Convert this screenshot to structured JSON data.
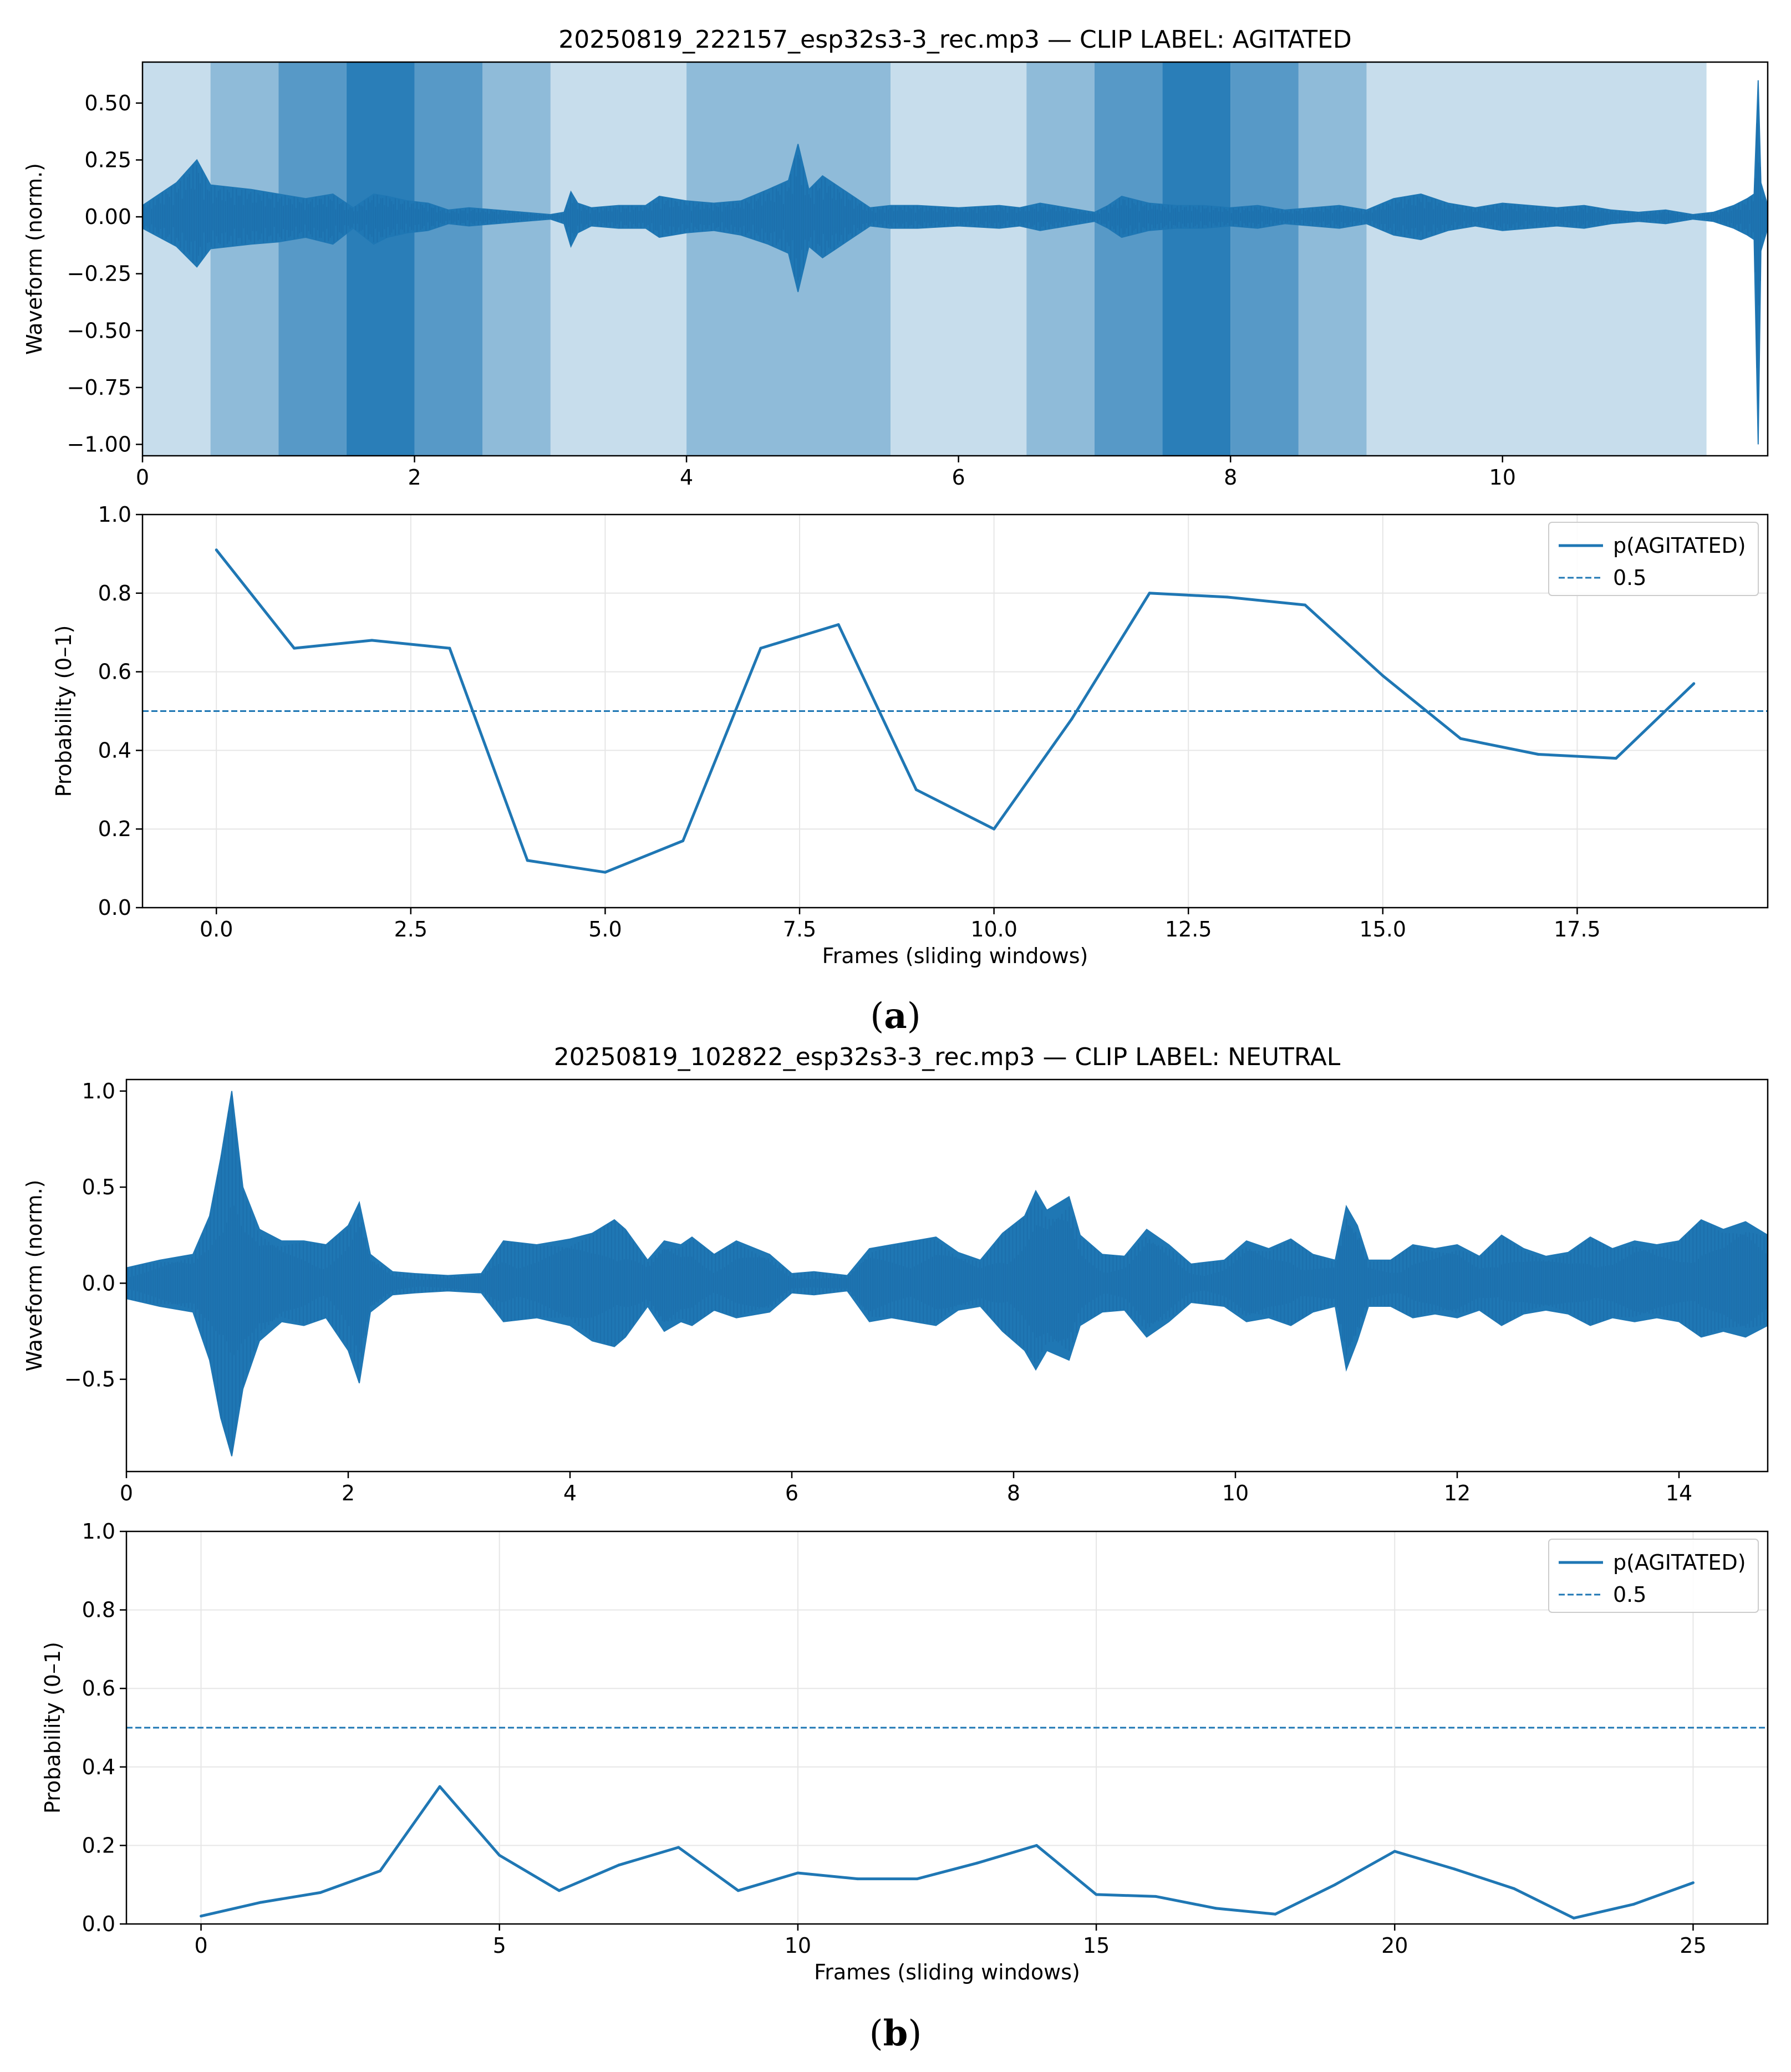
{
  "figure": {
    "caption_a": "a",
    "caption_b": "b"
  },
  "chart_data": [
    {
      "type": "area",
      "panel": "a-top",
      "title": "20250819_222157_esp32s3-3_rec.mp3 — CLIP LABEL: AGITATED",
      "xlabel": "",
      "ylabel": "Waveform (norm.)",
      "xlim": [
        0,
        11.95
      ],
      "ylim": [
        -1.05,
        0.68
      ],
      "xticks": [
        0,
        2,
        4,
        6,
        8,
        10
      ],
      "xtick_labels": [
        "0",
        "2",
        "4",
        "6",
        "8",
        "10"
      ],
      "yticks": [
        0.5,
        0.25,
        0.0,
        -0.25,
        -0.5,
        -0.75,
        -1.0
      ],
      "ytick_labels": [
        "0.50",
        "0.25",
        "0.00",
        "−0.25",
        "−0.50",
        "−0.75",
        "−1.00"
      ],
      "grid": false,
      "series_color": "#1f77b4",
      "band_color": "#1f77b4",
      "band_alpha_unit": 0.25,
      "shading_bands": [
        {
          "x0": 0.0,
          "x1": 0.5,
          "level": 1
        },
        {
          "x0": 0.5,
          "x1": 1.0,
          "level": 2
        },
        {
          "x0": 1.0,
          "x1": 1.5,
          "level": 3
        },
        {
          "x0": 1.5,
          "x1": 2.0,
          "level": 4
        },
        {
          "x0": 2.0,
          "x1": 2.5,
          "level": 3
        },
        {
          "x0": 2.5,
          "x1": 3.0,
          "level": 2
        },
        {
          "x0": 3.0,
          "x1": 4.0,
          "level": 1
        },
        {
          "x0": 4.0,
          "x1": 5.5,
          "level": 2
        },
        {
          "x0": 5.5,
          "x1": 6.5,
          "level": 1
        },
        {
          "x0": 6.5,
          "x1": 7.0,
          "level": 2
        },
        {
          "x0": 7.0,
          "x1": 7.5,
          "level": 3
        },
        {
          "x0": 7.5,
          "x1": 8.0,
          "level": 4
        },
        {
          "x0": 8.0,
          "x1": 8.5,
          "level": 3
        },
        {
          "x0": 8.5,
          "x1": 9.0,
          "level": 2
        },
        {
          "x0": 9.0,
          "x1": 11.5,
          "level": 1
        }
      ],
      "envelope": {
        "x": [
          0.0,
          0.25,
          0.4,
          0.5,
          0.8,
          1.0,
          1.2,
          1.4,
          1.55,
          1.7,
          1.8,
          1.95,
          2.1,
          2.25,
          2.4,
          2.6,
          2.8,
          3.0,
          3.1,
          3.15,
          3.2,
          3.3,
          3.5,
          3.7,
          3.8,
          3.9,
          4.0,
          4.2,
          4.4,
          4.6,
          4.75,
          4.82,
          4.9,
          5.0,
          5.1,
          5.2,
          5.35,
          5.5,
          5.7,
          6.0,
          6.3,
          6.45,
          6.6,
          6.8,
          7.0,
          7.1,
          7.2,
          7.4,
          7.6,
          7.8,
          8.0,
          8.2,
          8.4,
          8.6,
          8.8,
          9.0,
          9.2,
          9.4,
          9.6,
          9.8,
          10.0,
          10.2,
          10.4,
          10.6,
          10.8,
          11.0,
          11.2,
          11.4,
          11.55,
          11.7,
          11.8,
          11.85,
          11.88,
          11.9,
          11.95
        ],
        "upper": [
          0.05,
          0.15,
          0.25,
          0.14,
          0.12,
          0.1,
          0.08,
          0.1,
          0.04,
          0.1,
          0.09,
          0.07,
          0.06,
          0.03,
          0.04,
          0.03,
          0.02,
          0.01,
          0.02,
          0.11,
          0.06,
          0.04,
          0.05,
          0.05,
          0.09,
          0.08,
          0.07,
          0.06,
          0.07,
          0.12,
          0.16,
          0.32,
          0.12,
          0.18,
          0.14,
          0.1,
          0.04,
          0.05,
          0.05,
          0.04,
          0.05,
          0.04,
          0.06,
          0.04,
          0.02,
          0.05,
          0.09,
          0.06,
          0.05,
          0.05,
          0.04,
          0.05,
          0.03,
          0.04,
          0.05,
          0.03,
          0.08,
          0.1,
          0.06,
          0.04,
          0.06,
          0.05,
          0.04,
          0.05,
          0.03,
          0.02,
          0.03,
          0.01,
          0.02,
          0.05,
          0.08,
          0.1,
          0.6,
          0.15,
          0.05
        ],
        "lower": [
          -0.05,
          -0.13,
          -0.22,
          -0.14,
          -0.12,
          -0.11,
          -0.09,
          -0.12,
          -0.05,
          -0.12,
          -0.09,
          -0.07,
          -0.06,
          -0.03,
          -0.04,
          -0.03,
          -0.02,
          -0.01,
          -0.03,
          -0.13,
          -0.07,
          -0.04,
          -0.05,
          -0.05,
          -0.09,
          -0.08,
          -0.07,
          -0.06,
          -0.08,
          -0.12,
          -0.16,
          -0.33,
          -0.13,
          -0.18,
          -0.14,
          -0.1,
          -0.04,
          -0.05,
          -0.05,
          -0.04,
          -0.05,
          -0.04,
          -0.06,
          -0.04,
          -0.02,
          -0.05,
          -0.09,
          -0.06,
          -0.05,
          -0.05,
          -0.04,
          -0.05,
          -0.03,
          -0.04,
          -0.05,
          -0.03,
          -0.08,
          -0.1,
          -0.06,
          -0.04,
          -0.06,
          -0.05,
          -0.04,
          -0.05,
          -0.03,
          -0.02,
          -0.03,
          -0.01,
          -0.02,
          -0.05,
          -0.08,
          -0.1,
          -1.0,
          -0.15,
          -0.05
        ]
      }
    },
    {
      "type": "line",
      "panel": "a-bottom",
      "xlabel": "Frames (sliding windows)",
      "ylabel": "Probability (0–1)",
      "xlim": [
        -0.95,
        19.95
      ],
      "ylim": [
        0.0,
        1.0
      ],
      "xticks": [
        0.0,
        2.5,
        5.0,
        7.5,
        10.0,
        12.5,
        15.0,
        17.5
      ],
      "xtick_labels": [
        "0.0",
        "2.5",
        "5.0",
        "7.5",
        "10.0",
        "12.5",
        "15.0",
        "17.5"
      ],
      "yticks": [
        0.0,
        0.2,
        0.4,
        0.6,
        0.8,
        1.0
      ],
      "ytick_labels": [
        "0.0",
        "0.2",
        "0.4",
        "0.6",
        "0.8",
        "1.0"
      ],
      "grid": true,
      "legend_position": "top-right",
      "series": [
        {
          "name": "p(AGITATED)",
          "color": "#1f77b4",
          "x": [
            0,
            1,
            2,
            3,
            4,
            5,
            6,
            7,
            8,
            9,
            10,
            11,
            12,
            13,
            14,
            15,
            16,
            17,
            18,
            19
          ],
          "values": [
            0.91,
            0.66,
            0.68,
            0.66,
            0.12,
            0.09,
            0.17,
            0.66,
            0.72,
            0.3,
            0.2,
            0.48,
            0.8,
            0.79,
            0.77,
            0.59,
            0.43,
            0.39,
            0.38,
            0.57
          ]
        }
      ],
      "threshold": {
        "name": "0.5",
        "value": 0.5,
        "color": "#1f77b4",
        "style": "dashed"
      }
    },
    {
      "type": "area",
      "panel": "b-top",
      "title": "20250819_102822_esp32s3-3_rec.mp3 — CLIP LABEL: NEUTRAL",
      "xlabel": "",
      "ylabel": "Waveform (norm.)",
      "xlim": [
        0,
        14.8
      ],
      "ylim": [
        -0.98,
        1.06
      ],
      "xticks": [
        0,
        2,
        4,
        6,
        8,
        10,
        12,
        14
      ],
      "xtick_labels": [
        "0",
        "2",
        "4",
        "6",
        "8",
        "10",
        "12",
        "14"
      ],
      "yticks": [
        1.0,
        0.5,
        0.0,
        -0.5
      ],
      "ytick_labels": [
        "1.0",
        "0.5",
        "0.0",
        "−0.5"
      ],
      "grid": false,
      "series_color": "#1f77b4",
      "envelope": {
        "x": [
          0.0,
          0.3,
          0.6,
          0.75,
          0.85,
          0.95,
          1.05,
          1.2,
          1.4,
          1.6,
          1.8,
          2.0,
          2.1,
          2.2,
          2.4,
          2.6,
          2.9,
          3.2,
          3.4,
          3.7,
          4.0,
          4.2,
          4.4,
          4.5,
          4.7,
          4.85,
          5.0,
          5.1,
          5.3,
          5.5,
          5.8,
          6.0,
          6.2,
          6.5,
          6.7,
          6.9,
          7.1,
          7.3,
          7.5,
          7.7,
          7.9,
          8.1,
          8.2,
          8.3,
          8.5,
          8.6,
          8.8,
          9.0,
          9.2,
          9.4,
          9.6,
          9.9,
          10.1,
          10.3,
          10.5,
          10.7,
          10.9,
          11.0,
          11.1,
          11.2,
          11.4,
          11.6,
          11.8,
          12.0,
          12.2,
          12.4,
          12.6,
          12.8,
          13.0,
          13.2,
          13.4,
          13.6,
          13.8,
          14.0,
          14.2,
          14.4,
          14.6,
          14.8
        ],
        "upper": [
          0.08,
          0.12,
          0.15,
          0.35,
          0.65,
          1.0,
          0.5,
          0.28,
          0.22,
          0.22,
          0.2,
          0.3,
          0.42,
          0.15,
          0.06,
          0.05,
          0.04,
          0.05,
          0.22,
          0.2,
          0.23,
          0.26,
          0.33,
          0.28,
          0.12,
          0.22,
          0.2,
          0.24,
          0.15,
          0.22,
          0.15,
          0.05,
          0.06,
          0.04,
          0.18,
          0.2,
          0.22,
          0.24,
          0.16,
          0.12,
          0.26,
          0.35,
          0.48,
          0.38,
          0.45,
          0.25,
          0.15,
          0.14,
          0.28,
          0.2,
          0.1,
          0.12,
          0.22,
          0.18,
          0.23,
          0.15,
          0.12,
          0.4,
          0.3,
          0.12,
          0.12,
          0.2,
          0.18,
          0.2,
          0.14,
          0.25,
          0.18,
          0.14,
          0.16,
          0.24,
          0.18,
          0.22,
          0.2,
          0.22,
          0.33,
          0.28,
          0.32,
          0.25
        ],
        "lower": [
          -0.08,
          -0.12,
          -0.15,
          -0.4,
          -0.7,
          -0.9,
          -0.55,
          -0.3,
          -0.2,
          -0.22,
          -0.18,
          -0.35,
          -0.52,
          -0.15,
          -0.06,
          -0.05,
          -0.04,
          -0.05,
          -0.2,
          -0.18,
          -0.22,
          -0.3,
          -0.33,
          -0.28,
          -0.12,
          -0.25,
          -0.2,
          -0.22,
          -0.14,
          -0.18,
          -0.15,
          -0.05,
          -0.06,
          -0.04,
          -0.2,
          -0.18,
          -0.2,
          -0.22,
          -0.14,
          -0.12,
          -0.25,
          -0.35,
          -0.45,
          -0.35,
          -0.4,
          -0.22,
          -0.15,
          -0.14,
          -0.28,
          -0.2,
          -0.1,
          -0.12,
          -0.2,
          -0.18,
          -0.22,
          -0.15,
          -0.12,
          -0.45,
          -0.3,
          -0.12,
          -0.12,
          -0.18,
          -0.16,
          -0.18,
          -0.14,
          -0.22,
          -0.16,
          -0.14,
          -0.16,
          -0.22,
          -0.18,
          -0.2,
          -0.18,
          -0.2,
          -0.28,
          -0.25,
          -0.28,
          -0.22
        ]
      }
    },
    {
      "type": "line",
      "panel": "b-bottom",
      "xlabel": "Frames (sliding windows)",
      "ylabel": "Probability (0–1)",
      "xlim": [
        -1.25,
        26.25
      ],
      "ylim": [
        0.0,
        1.0
      ],
      "xticks": [
        0,
        5,
        10,
        15,
        20,
        25
      ],
      "xtick_labels": [
        "0",
        "5",
        "10",
        "15",
        "20",
        "25"
      ],
      "yticks": [
        0.0,
        0.2,
        0.4,
        0.6,
        0.8,
        1.0
      ],
      "ytick_labels": [
        "0.0",
        "0.2",
        "0.4",
        "0.6",
        "0.8",
        "1.0"
      ],
      "grid": true,
      "legend_position": "top-right",
      "series": [
        {
          "name": "p(AGITATED)",
          "color": "#1f77b4",
          "x": [
            0,
            1,
            2,
            3,
            4,
            5,
            6,
            7,
            8,
            9,
            10,
            11,
            12,
            13,
            14,
            15,
            16,
            17,
            18,
            19,
            20,
            21,
            22,
            23,
            24,
            25
          ],
          "values": [
            0.02,
            0.055,
            0.08,
            0.135,
            0.35,
            0.175,
            0.085,
            0.15,
            0.195,
            0.085,
            0.13,
            0.115,
            0.115,
            0.155,
            0.2,
            0.075,
            0.07,
            0.04,
            0.025,
            0.1,
            0.185,
            0.14,
            0.09,
            0.015,
            0.05,
            0.105
          ]
        }
      ],
      "threshold": {
        "name": "0.5",
        "value": 0.5,
        "color": "#1f77b4",
        "style": "dashed"
      }
    }
  ]
}
